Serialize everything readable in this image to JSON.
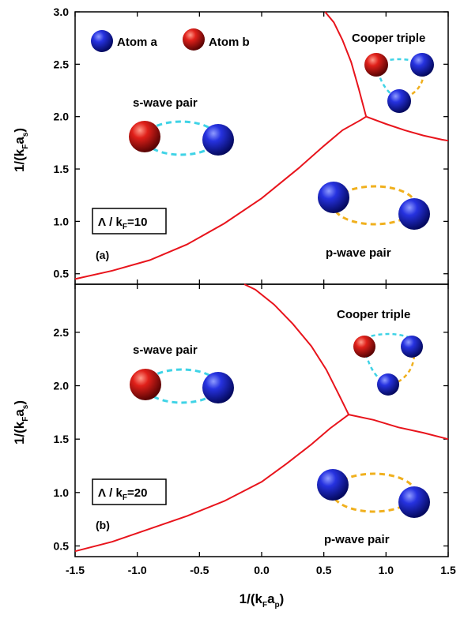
{
  "chart_data": {
    "type": "line",
    "x_axis": {
      "label": "1/(k",
      "label_sub": "F",
      "label_mid": "a",
      "label_sub2": "p",
      "label_end": ")",
      "range": [
        -1.5,
        1.5
      ],
      "ticks": [
        "-1.5",
        "-1.0",
        "-0.5",
        "0.0",
        "0.5",
        "1.0",
        "1.5"
      ],
      "tick_values": [
        -1.5,
        -1.0,
        -0.5,
        0.0,
        0.5,
        1.0,
        1.5
      ]
    },
    "legend": {
      "atom_a": "Atom a",
      "atom_b": "Atom b",
      "color_a": "#1a22c8",
      "color_b": "#d41a1a"
    },
    "line_color": "#e8141c",
    "cyan_link": "#3fd3e6",
    "orange_link": "#f0b01e",
    "panels": [
      {
        "panel_label": "(a)",
        "lambda_text": "Λ / k",
        "lambda_sub": "F",
        "lambda_val": "=10",
        "y_axis": {
          "label": "1/(k",
          "label_sub": "F",
          "label_mid": "a",
          "label_sub2": "s",
          "label_end": ")",
          "range": [
            0.4,
            3.0
          ],
          "ticks": [
            "0.5",
            "1.0",
            "1.5",
            "2.0",
            "2.5",
            "3.0"
          ],
          "tick_values": [
            0.5,
            1.0,
            1.5,
            2.0,
            2.5,
            3.0
          ]
        },
        "regions": {
          "s_wave": "s-wave pair",
          "p_wave": "p-wave pair",
          "triple": "Cooper triple"
        },
        "boundary_s_p": {
          "x": [
            -1.5,
            -1.2,
            -0.9,
            -0.6,
            -0.3,
            0.0,
            0.3,
            0.5,
            0.65,
            0.8,
            0.84
          ],
          "y": [
            0.45,
            0.53,
            0.63,
            0.78,
            0.98,
            1.22,
            1.51,
            1.72,
            1.87,
            1.97,
            2.0
          ]
        },
        "boundary_s_t": {
          "x": [
            0.84,
            0.78,
            0.72,
            0.65,
            0.58,
            0.51
          ],
          "y": [
            2.0,
            2.27,
            2.52,
            2.73,
            2.9,
            3.0
          ]
        },
        "boundary_p_t": {
          "x": [
            0.84,
            1.0,
            1.15,
            1.3,
            1.45,
            1.5
          ],
          "y": [
            2.0,
            1.93,
            1.87,
            1.82,
            1.78,
            1.77
          ]
        }
      },
      {
        "panel_label": "(b)",
        "lambda_text": "Λ / k",
        "lambda_sub": "F",
        "lambda_val": "=20",
        "y_axis": {
          "label": "1/(k",
          "label_sub": "F",
          "label_mid": "a",
          "label_sub2": "s",
          "label_end": ")",
          "range": [
            0.4,
            2.95
          ],
          "ticks": [
            "0.5",
            "1.0",
            "1.5",
            "2.0",
            "2.5"
          ],
          "tick_values": [
            0.5,
            1.0,
            1.5,
            2.0,
            2.5
          ]
        },
        "regions": {
          "s_wave": "s-wave pair",
          "p_wave": "p-wave pair",
          "triple": "Cooper triple"
        },
        "boundary_s_p": {
          "x": [
            -1.5,
            -1.2,
            -0.9,
            -0.6,
            -0.3,
            0.0,
            0.2,
            0.4,
            0.55,
            0.7
          ],
          "y": [
            0.45,
            0.54,
            0.66,
            0.78,
            0.92,
            1.1,
            1.27,
            1.45,
            1.6,
            1.73
          ]
        },
        "boundary_s_t": {
          "x": [
            0.7,
            0.62,
            0.52,
            0.4,
            0.25,
            0.1,
            -0.05,
            -0.14
          ],
          "y": [
            1.73,
            1.92,
            2.15,
            2.37,
            2.58,
            2.76,
            2.9,
            2.95
          ]
        },
        "boundary_p_t": {
          "x": [
            0.7,
            0.9,
            1.1,
            1.3,
            1.5
          ],
          "y": [
            1.73,
            1.68,
            1.61,
            1.56,
            1.5
          ]
        }
      }
    ]
  }
}
